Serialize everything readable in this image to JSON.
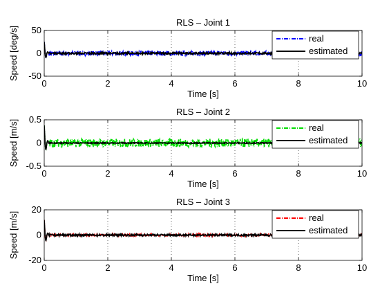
{
  "chart_data": [
    {
      "type": "line",
      "title": "RLS – Joint 1",
      "xlabel": "Time [s]",
      "ylabel": "Speed [deg/s]",
      "xlim": [
        0,
        10
      ],
      "ylim": [
        -50,
        50
      ],
      "xticks": [
        "0",
        "2",
        "4",
        "6",
        "8",
        "10"
      ],
      "yticks": [
        "-50",
        "0",
        "50"
      ],
      "grid": "vertical dotted",
      "legend_position": "top-right",
      "series": [
        {
          "name": "real",
          "color": "#0000ff",
          "style": "dash-dot",
          "noise_amplitude": 5,
          "transient_peak": 25
        },
        {
          "name": "estimated",
          "color": "#000000",
          "style": "solid",
          "noise_amplitude": 2,
          "transient_peak": 25
        }
      ]
    },
    {
      "type": "line",
      "title": "RLS – Joint 2",
      "xlabel": "Time [s]",
      "ylabel": "Speed [m/s]",
      "xlim": [
        0,
        10
      ],
      "ylim": [
        -0.5,
        0.5
      ],
      "xticks": [
        "0",
        "2",
        "4",
        "6",
        "8",
        "10"
      ],
      "yticks": [
        "-0.5",
        "0",
        "0.5"
      ],
      "grid": "vertical dotted",
      "legend_position": "top-right",
      "series": [
        {
          "name": "real",
          "color": "#00dd00",
          "style": "dash-dot",
          "noise_amplitude": 0.09,
          "transient_peak": 0.38
        },
        {
          "name": "estimated",
          "color": "#000000",
          "style": "solid",
          "noise_amplitude": 0.01,
          "transient_peak": 0.38
        }
      ]
    },
    {
      "type": "line",
      "title": "RLS – Joint 3",
      "xlabel": "Time [s]",
      "ylabel": "Speed [m/s]",
      "xlim": [
        0,
        10
      ],
      "ylim": [
        -20,
        20
      ],
      "xticks": [
        "0",
        "2",
        "4",
        "6",
        "8",
        "10"
      ],
      "yticks": [
        "-20",
        "0",
        "20"
      ],
      "grid": "vertical dotted",
      "legend_position": "top-right",
      "series": [
        {
          "name": "real",
          "color": "#ff0000",
          "style": "dash-dot",
          "noise_amplitude": 0.8,
          "transient_peak": 12
        },
        {
          "name": "estimated",
          "color": "#000000",
          "style": "solid",
          "noise_amplitude": 0.8,
          "transient_peak": 12
        }
      ]
    }
  ]
}
